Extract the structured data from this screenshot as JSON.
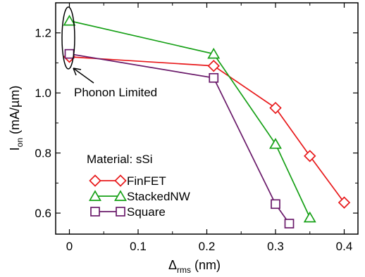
{
  "chart_data": {
    "type": "line",
    "xlabel": {
      "main": "Δ",
      "sub": "rms",
      "suffix": " (nm)"
    },
    "ylabel": {
      "main": "I",
      "sub": "on",
      "suffix": " (mA/µm)"
    },
    "xlim": [
      -0.02,
      0.42
    ],
    "ylim": [
      0.53,
      1.3
    ],
    "xticks": [
      0,
      0.1,
      0.2,
      0.3,
      0.4
    ],
    "xtick_labels": [
      "0",
      "0.1",
      "0.2",
      "0.3",
      "0.4"
    ],
    "yticks": [
      0.6,
      0.8,
      1.0,
      1.2
    ],
    "ytick_labels": [
      "0.6",
      "0.8",
      "1.0",
      "1.2"
    ],
    "legend_title": "Material: sSi",
    "legend_position": "bottom-left",
    "annotation": "Phonon Limited",
    "series": [
      {
        "name": "FinFET",
        "color": "#e8191b",
        "marker": "diamond",
        "x": [
          0,
          0.21,
          0.3,
          0.35,
          0.4
        ],
        "y": [
          1.12,
          1.09,
          0.95,
          0.79,
          0.635
        ]
      },
      {
        "name": "StackedNW",
        "color": "#16a016",
        "marker": "triangle",
        "x": [
          0,
          0.21,
          0.3,
          0.35
        ],
        "y": [
          1.24,
          1.13,
          0.83,
          0.585
        ]
      },
      {
        "name": "Square",
        "color": "#6a1a6a",
        "marker": "square",
        "x": [
          0,
          0.21,
          0.3,
          0.32
        ],
        "y": [
          1.13,
          1.05,
          0.63,
          0.565
        ]
      }
    ]
  }
}
